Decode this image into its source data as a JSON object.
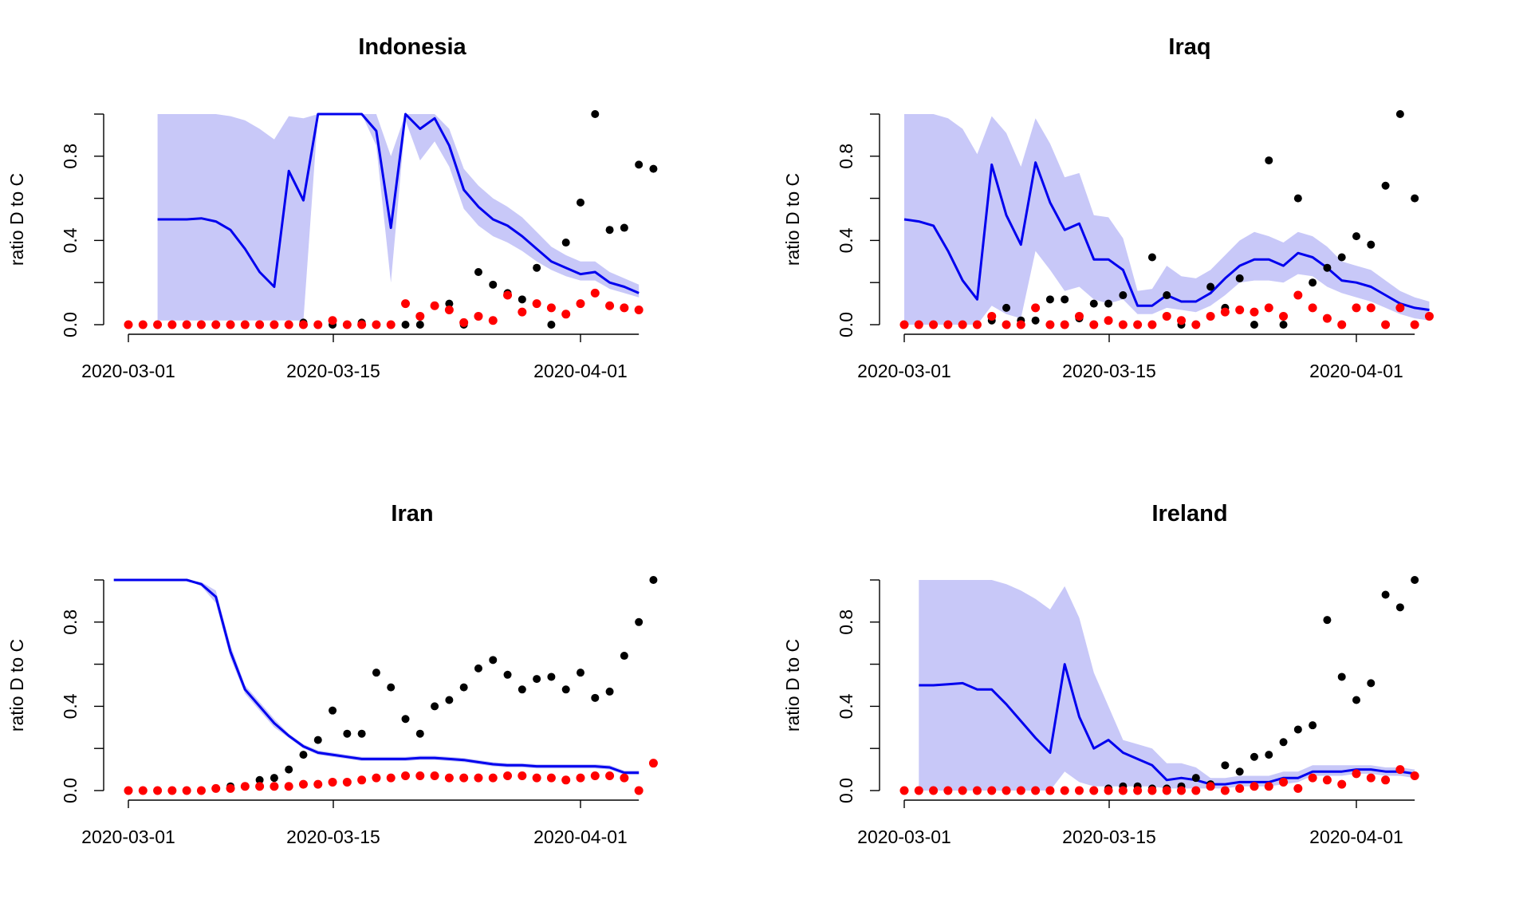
{
  "chart_data": [
    {
      "type": "line",
      "title": "Indonesia",
      "ylabel": "ratio D to C",
      "xlabel": "",
      "x_start": "2020-03-01",
      "x_end": "2020-04-05",
      "ylim": [
        0,
        1
      ],
      "yticks": [
        "0.0",
        "0.4",
        "0.8"
      ],
      "xticks": [
        "2020-03-01",
        "2020-03-15",
        "2020-04-01"
      ],
      "colors": {
        "line": "#0000ee",
        "band": "#c8c8f8",
        "points_black": "#000000",
        "points_red": "#ff0000"
      },
      "series": [
        {
          "values": [
            null,
            null,
            0.5,
            0.5,
            0.5,
            0.505,
            0.49,
            0.45,
            0.36,
            0.25,
            0.18,
            0.73,
            0.59,
            1,
            1,
            1,
            1,
            0.92,
            0.46,
            1,
            0.93,
            0.98,
            0.85,
            0.64,
            0.56,
            0.5,
            0.47,
            0.42,
            0.36,
            0.3,
            0.27,
            0.24,
            0.25,
            0.2,
            0.18,
            0.15
          ]
        },
        {
          "values": [
            null,
            null,
            0.02,
            0.02,
            0.02,
            0.02,
            0.02,
            0.02,
            0.02,
            0.02,
            0.02,
            0.02,
            0.02,
            1,
            1,
            1,
            1,
            0.85,
            0.2,
            0.97,
            0.78,
            0.87,
            0.75,
            0.55,
            0.47,
            0.42,
            0.39,
            0.35,
            0.3,
            0.26,
            0.23,
            0.21,
            0.21,
            0.17,
            0.15,
            0.13
          ]
        },
        {
          "values": [
            null,
            null,
            1,
            1,
            1,
            1,
            1,
            0.99,
            0.97,
            0.93,
            0.88,
            0.99,
            0.98,
            1,
            1,
            1,
            1,
            1,
            0.8,
            1,
            1,
            1,
            0.93,
            0.74,
            0.66,
            0.6,
            0.56,
            0.51,
            0.44,
            0.37,
            0.33,
            0.3,
            0.3,
            0.25,
            0.22,
            0.19
          ]
        },
        {
          "values": [
            0,
            0,
            0,
            0,
            0,
            0,
            0,
            0,
            0,
            0,
            0,
            0,
            0.01,
            0,
            0,
            0,
            0.01,
            0,
            0,
            0,
            0,
            0.09,
            0.1,
            0,
            0.25,
            0.19,
            0.15,
            0.12,
            0.27,
            0,
            0.39,
            0.58,
            1,
            0.45,
            0.46,
            0.76,
            0.74
          ]
        },
        {
          "values": [
            0,
            0,
            0,
            0,
            0,
            0,
            0,
            0,
            0,
            0,
            0,
            0,
            0,
            0,
            0.02,
            0,
            0,
            0,
            0,
            0.1,
            0.04,
            0.09,
            0.07,
            0.01,
            0.04,
            0.02,
            0.14,
            0.06,
            0.1,
            0.08,
            0.05,
            0.1,
            0.15,
            0.09,
            0.08,
            0.07
          ]
        }
      ]
    },
    {
      "type": "line",
      "title": "Iraq",
      "ylabel": "ratio D to C",
      "xlabel": "",
      "x_start": "2020-03-01",
      "x_end": "2020-04-05",
      "ylim": [
        0,
        1
      ],
      "yticks": [
        "0.0",
        "0.4",
        "0.8"
      ],
      "xticks": [
        "2020-03-01",
        "2020-03-15",
        "2020-04-01"
      ],
      "colors": {
        "line": "#0000ee",
        "band": "#c8c8f8",
        "points_black": "#000000",
        "points_red": "#ff0000"
      },
      "series": [
        {
          "values": [
            0.5,
            0.49,
            0.47,
            0.35,
            0.21,
            0.12,
            0.76,
            0.52,
            0.38,
            0.77,
            0.58,
            0.45,
            0.48,
            0.31,
            0.31,
            0.26,
            0.09,
            0.09,
            0.14,
            0.11,
            0.11,
            0.15,
            0.22,
            0.28,
            0.31,
            0.31,
            0.28,
            0.34,
            0.32,
            0.27,
            0.21,
            0.2,
            0.18,
            0.14,
            0.1,
            0.08,
            0.07
          ]
        },
        {
          "values": [
            0,
            0,
            0,
            0,
            0,
            0,
            0.09,
            0.05,
            0.03,
            0.35,
            0.26,
            0.16,
            0.18,
            0.12,
            0.1,
            0.12,
            0.05,
            0.05,
            0.08,
            0.07,
            0.06,
            0.09,
            0.14,
            0.2,
            0.21,
            0.21,
            0.2,
            0.24,
            0.23,
            0.18,
            0.15,
            0.13,
            0.11,
            0.08,
            0.05,
            0.03,
            0.02
          ]
        },
        {
          "values": [
            1,
            1,
            1,
            0.98,
            0.93,
            0.81,
            0.99,
            0.91,
            0.75,
            0.98,
            0.86,
            0.7,
            0.72,
            0.52,
            0.51,
            0.41,
            0.16,
            0.17,
            0.28,
            0.23,
            0.22,
            0.26,
            0.33,
            0.4,
            0.44,
            0.42,
            0.39,
            0.44,
            0.42,
            0.37,
            0.3,
            0.28,
            0.26,
            0.21,
            0.16,
            0.13,
            0.11
          ]
        },
        {
          "values": [
            0,
            0,
            0,
            0,
            0,
            0,
            0.02,
            0.08,
            0.02,
            0.02,
            0.12,
            0.12,
            0.03,
            0.1,
            0.1,
            0.14,
            0,
            0.32,
            0.14,
            0,
            0,
            0.18,
            0.08,
            0.22,
            0,
            0.78,
            0,
            0.6,
            0.2,
            0.27,
            0.32,
            0.42,
            0.38,
            0.66,
            1,
            0.6
          ]
        },
        {
          "values": [
            0,
            0,
            0,
            0,
            0,
            0,
            0.04,
            0,
            0,
            0.08,
            0,
            0,
            0.04,
            0,
            0.02,
            0,
            0,
            0,
            0.04,
            0.02,
            0,
            0.04,
            0.06,
            0.07,
            0.06,
            0.08,
            0.04,
            0.14,
            0.08,
            0.03,
            0,
            0.08,
            0.08,
            0,
            0.08,
            0,
            0.04
          ]
        }
      ]
    },
    {
      "type": "line",
      "title": "Iran",
      "ylabel": "ratio D to C",
      "xlabel": "",
      "x_start": "2020-02-29",
      "x_end": "2020-04-05",
      "ylim": [
        0,
        1
      ],
      "yticks": [
        "0.0",
        "0.4",
        "0.8"
      ],
      "xticks": [
        "2020-03-01",
        "2020-03-15",
        "2020-04-01"
      ],
      "colors": {
        "line": "#0000ee",
        "band": "#c8c8f8",
        "points_black": "#000000",
        "points_red": "#ff0000"
      },
      "series": [
        {
          "values": [
            1,
            1,
            1,
            1,
            1,
            1,
            0.98,
            0.92,
            0.66,
            0.48,
            0.4,
            0.32,
            0.26,
            0.21,
            0.18,
            0.17,
            0.16,
            0.15,
            0.15,
            0.15,
            0.15,
            0.155,
            0.155,
            0.15,
            0.145,
            0.135,
            0.125,
            0.12,
            0.12,
            0.115,
            0.115,
            0.115,
            0.115,
            0.115,
            0.11,
            0.085,
            0.085
          ]
        },
        {
          "values": [
            1,
            1,
            1,
            1,
            1,
            1,
            0.97,
            0.89,
            0.63,
            0.46,
            0.38,
            0.3,
            0.25,
            0.2,
            0.17,
            0.16,
            0.15,
            0.14,
            0.14,
            0.14,
            0.14,
            0.145,
            0.145,
            0.14,
            0.135,
            0.125,
            0.115,
            0.11,
            0.11,
            0.105,
            0.105,
            0.105,
            0.105,
            0.105,
            0.1,
            0.075,
            0.075
          ]
        },
        {
          "values": [
            1,
            1,
            1,
            1,
            1,
            1,
            0.99,
            0.95,
            0.69,
            0.5,
            0.42,
            0.34,
            0.27,
            0.22,
            0.19,
            0.18,
            0.17,
            0.16,
            0.16,
            0.16,
            0.16,
            0.165,
            0.165,
            0.16,
            0.155,
            0.145,
            0.135,
            0.13,
            0.13,
            0.125,
            0.125,
            0.125,
            0.125,
            0.125,
            0.12,
            0.095,
            0.095
          ]
        },
        {
          "values": [
            null,
            0,
            0,
            null,
            null,
            null,
            null,
            0.01,
            0.02,
            0.02,
            0.05,
            0.06,
            0.1,
            0.17,
            0.24,
            0.38,
            0.27,
            0.27,
            0.56,
            0.49,
            0.34,
            0.27,
            0.4,
            0.43,
            0.49,
            0.58,
            0.62,
            0.55,
            0.48,
            0.53,
            0.54,
            0.48,
            0.56,
            0.44,
            0.47,
            0.64,
            0.8,
            1
          ]
        },
        {
          "values": [
            null,
            0,
            0,
            0,
            0,
            0,
            0,
            0.01,
            0.01,
            0.02,
            0.02,
            0.02,
            0.02,
            0.03,
            0.03,
            0.04,
            0.04,
            0.05,
            0.06,
            0.06,
            0.07,
            0.07,
            0.07,
            0.06,
            0.06,
            0.06,
            0.06,
            0.07,
            0.07,
            0.06,
            0.06,
            0.05,
            0.06,
            0.07,
            0.07,
            0.06,
            0,
            0.13
          ]
        }
      ]
    },
    {
      "type": "line",
      "title": "Ireland",
      "ylabel": "ratio D to C",
      "xlabel": "",
      "x_start": "2020-03-01",
      "x_end": "2020-04-05",
      "ylim": [
        0,
        1
      ],
      "yticks": [
        "0.0",
        "0.4",
        "0.8"
      ],
      "xticks": [
        "2020-03-01",
        "2020-03-15",
        "2020-04-01"
      ],
      "colors": {
        "line": "#0000ee",
        "band": "#c8c8f8",
        "points_black": "#000000",
        "points_red": "#ff0000"
      },
      "series": [
        {
          "values": [
            null,
            0.5,
            0.5,
            0.505,
            0.51,
            0.48,
            0.48,
            0.41,
            0.33,
            0.25,
            0.18,
            0.6,
            0.35,
            0.2,
            0.24,
            0.18,
            0.15,
            0.12,
            0.05,
            0.06,
            0.05,
            0.03,
            0.03,
            0.04,
            0.04,
            0.04,
            0.06,
            0.06,
            0.09,
            0.09,
            0.09,
            0.1,
            0.1,
            0.09,
            0.09,
            0.08
          ]
        },
        {
          "values": [
            null,
            0,
            0,
            0,
            0,
            0,
            0,
            0,
            0,
            0,
            0,
            0.09,
            0.04,
            0.02,
            0.02,
            0.02,
            0.02,
            0.02,
            0.01,
            0.01,
            0.01,
            0.01,
            0.01,
            0.02,
            0.02,
            0.02,
            0.03,
            0.04,
            0.07,
            0.07,
            0.07,
            0.08,
            0.08,
            0.07,
            0.07,
            0.06
          ]
        },
        {
          "values": [
            null,
            1,
            1,
            1,
            1,
            1,
            1,
            0.98,
            0.95,
            0.91,
            0.86,
            0.97,
            0.82,
            0.56,
            0.4,
            0.24,
            0.22,
            0.2,
            0.13,
            0.13,
            0.11,
            0.06,
            0.06,
            0.07,
            0.07,
            0.07,
            0.09,
            0.09,
            0.12,
            0.12,
            0.12,
            0.12,
            0.12,
            0.11,
            0.11,
            0.1
          ]
        },
        {
          "values": [
            0,
            0,
            0,
            0,
            0,
            0,
            0,
            0,
            0,
            0,
            0,
            0,
            0,
            0,
            0.01,
            0.02,
            0.02,
            0.01,
            0.01,
            0.02,
            0.06,
            0.03,
            0.12,
            0.09,
            0.16,
            0.17,
            0.23,
            0.29,
            0.31,
            0.81,
            0.54,
            0.43,
            0.51,
            0.93,
            0.87,
            1
          ]
        },
        {
          "values": [
            0,
            0,
            0,
            0,
            0,
            0,
            0,
            0,
            0,
            0,
            0,
            0,
            0,
            0,
            0,
            0,
            0,
            0,
            0,
            0,
            0,
            0.02,
            0,
            0.01,
            0.02,
            0.02,
            0.04,
            0.01,
            0.06,
            0.05,
            0.03,
            0.08,
            0.06,
            0.05,
            0.1,
            0.07
          ]
        }
      ]
    }
  ]
}
